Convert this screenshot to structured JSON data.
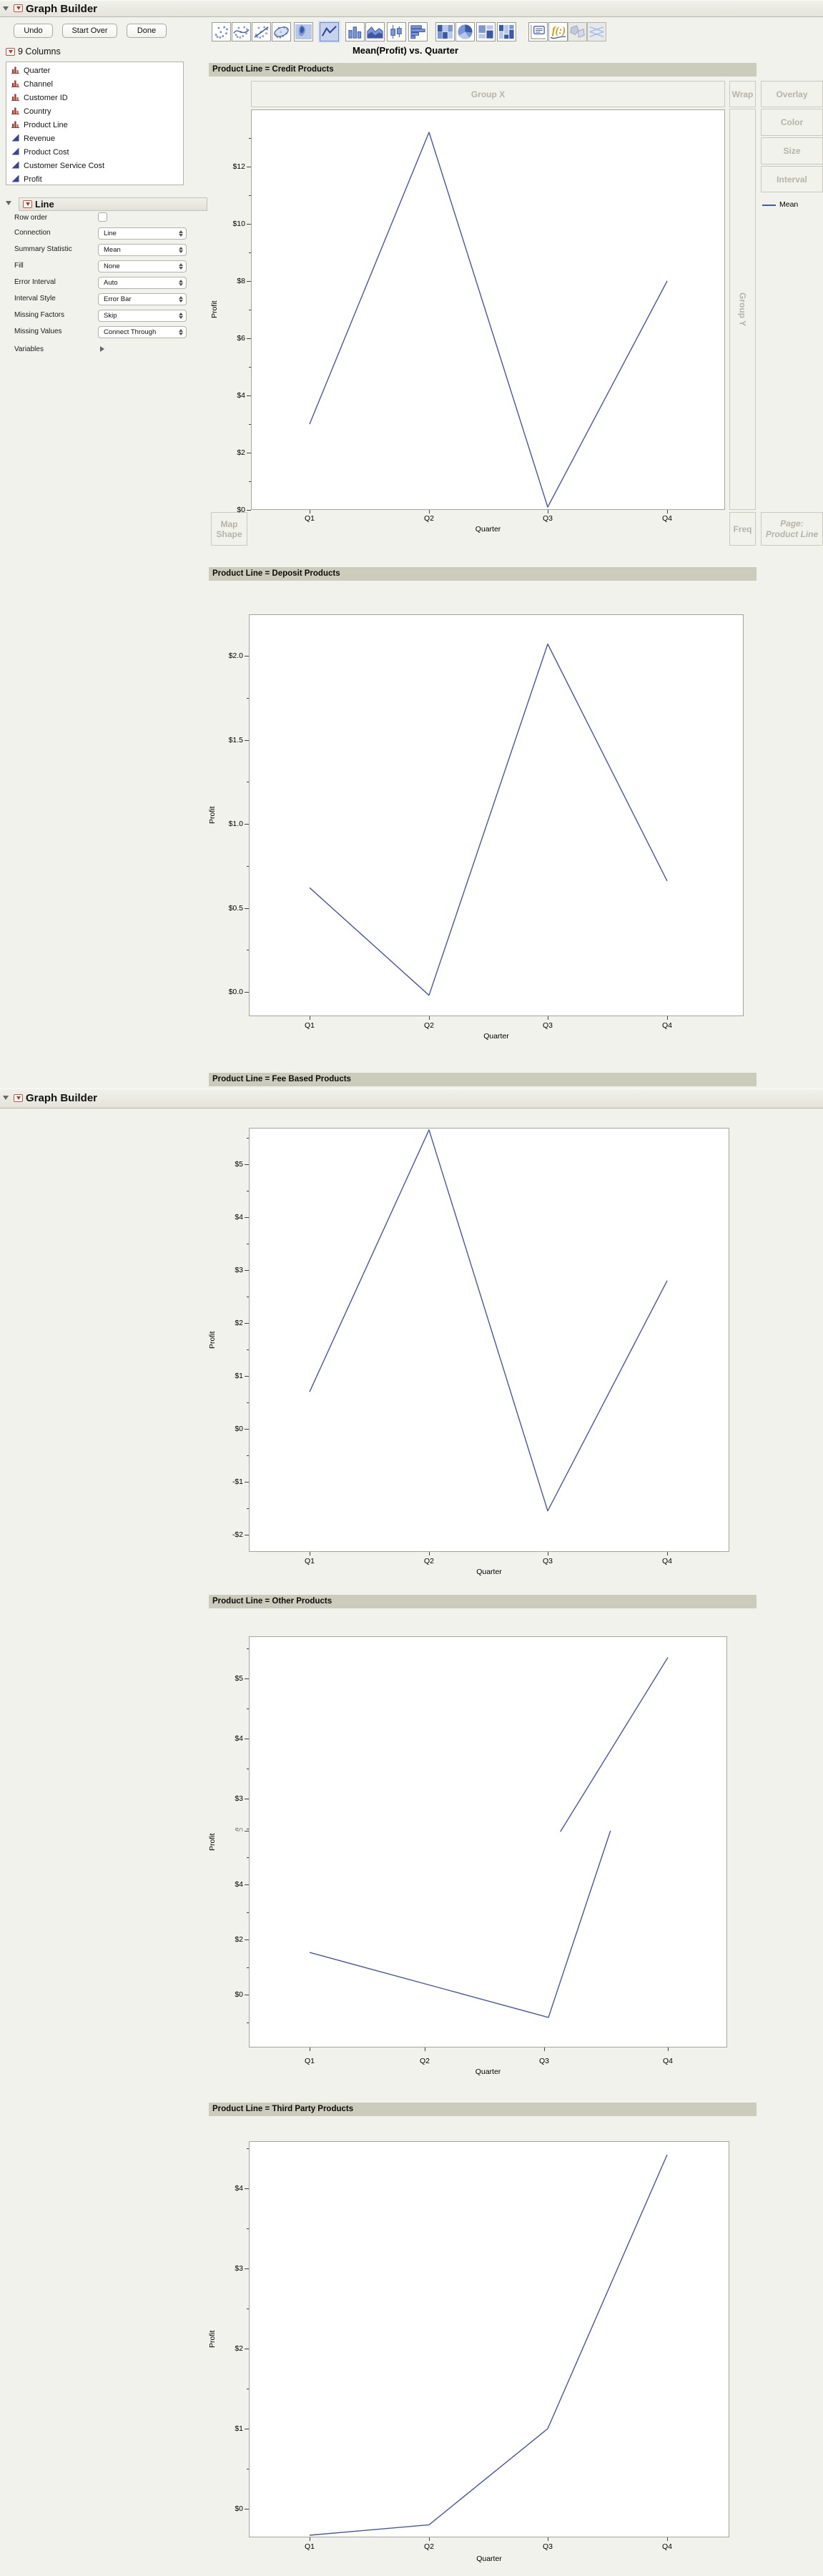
{
  "report1": {
    "title": "Graph Builder",
    "buttons": {
      "undo": "Undo",
      "start_over": "Start Over",
      "done": "Done"
    },
    "graph_title": "Mean(Profit) vs. Quarter"
  },
  "report2": {
    "title": "Graph Builder"
  },
  "toolbar": {
    "icons": [
      {
        "name": "points-icon"
      },
      {
        "name": "smoother-icon"
      },
      {
        "name": "line-of-fit-icon"
      },
      {
        "name": "ellipse-icon"
      },
      {
        "name": "contour-icon"
      },
      {
        "name": "line-icon",
        "selected": true
      },
      {
        "name": "bar-icon"
      },
      {
        "name": "area-icon"
      },
      {
        "name": "box-plot-icon"
      },
      {
        "name": "histogram-icon"
      },
      {
        "name": "heatmap-icon"
      },
      {
        "name": "pie-icon"
      },
      {
        "name": "treemap-icon"
      },
      {
        "name": "mosaic-icon"
      },
      {
        "name": "caption-box-icon"
      },
      {
        "name": "formula-icon"
      },
      {
        "name": "map-shapes-icon",
        "disabled": true
      },
      {
        "name": "parallel-plot-icon",
        "disabled": true
      }
    ]
  },
  "columns_panel": {
    "header": "9 Columns",
    "items": [
      {
        "label": "Quarter",
        "type": "nominal"
      },
      {
        "label": "Channel",
        "type": "nominal"
      },
      {
        "label": "Customer ID",
        "type": "nominal"
      },
      {
        "label": "Country",
        "type": "nominal"
      },
      {
        "label": "Product Line",
        "type": "nominal"
      },
      {
        "label": "Revenue",
        "type": "continuous"
      },
      {
        "label": "Product Cost",
        "type": "continuous"
      },
      {
        "label": "Customer Service Cost",
        "type": "continuous"
      },
      {
        "label": "Profit",
        "type": "continuous"
      }
    ]
  },
  "line_panel": {
    "header": "Line",
    "rows": [
      {
        "label": "Row order",
        "control": "checkbox",
        "value": false
      },
      {
        "label": "Connection",
        "control": "select",
        "value": "Line"
      },
      {
        "label": "Summary Statistic",
        "control": "select",
        "value": "Mean"
      },
      {
        "label": "Fill",
        "control": "select",
        "value": "None"
      },
      {
        "label": "Error Interval",
        "control": "select",
        "value": "Auto"
      },
      {
        "label": "Interval Style",
        "control": "select",
        "value": "Error Bar"
      },
      {
        "label": "Missing Factors",
        "control": "select",
        "value": "Skip"
      },
      {
        "label": "Missing Values",
        "control": "select",
        "value": "Connect Through"
      },
      {
        "label": "Variables",
        "control": "disclosure"
      }
    ]
  },
  "drop_zones": {
    "group_x": "Group X",
    "group_y": "Group Y",
    "wrap": "Wrap",
    "overlay": "Overlay",
    "color": "Color",
    "size": "Size",
    "interval": "Interval",
    "map_shape": "Map Shape",
    "freq": "Freq",
    "page_line1": "Page:",
    "page_line2": "Product Line"
  },
  "legend": {
    "label": "Mean"
  },
  "colors": {
    "line": "#4558a7",
    "band": "#cbccbb",
    "nominal_icon": "#a03a30",
    "continuous_icon": "#35459c",
    "zone_text": "#b4b4aa"
  },
  "chart_data": [
    {
      "type": "line",
      "title": "Product Line = Credit Products",
      "x": [
        "Q1",
        "Q2",
        "Q3",
        "Q4"
      ],
      "series": [
        {
          "name": "Mean",
          "values": [
            3.0,
            13.2,
            0.1,
            8.0
          ]
        }
      ],
      "xlabel": "Quarter",
      "ylabel": "Profit",
      "y_ticks": [
        {
          "v": 12,
          "label": "$12"
        },
        {
          "v": 10,
          "label": "$10"
        },
        {
          "v": 8,
          "label": "$8"
        },
        {
          "v": 6,
          "label": "$6"
        },
        {
          "v": 4,
          "label": "$4"
        },
        {
          "v": 2,
          "label": "$2"
        },
        {
          "v": 0,
          "label": "$0"
        }
      ],
      "ylim": [
        0,
        14
      ],
      "grid": false,
      "legend_position": "right"
    },
    {
      "type": "line",
      "title": "Product Line = Deposit Products",
      "x": [
        "Q1",
        "Q2",
        "Q3",
        "Q4"
      ],
      "series": [
        {
          "name": "Mean",
          "values": [
            0.62,
            -0.02,
            2.07,
            0.66
          ]
        }
      ],
      "xlabel": "Quarter",
      "ylabel": "Profit",
      "y_ticks": [
        {
          "v": 2.0,
          "label": "$2.0"
        },
        {
          "v": 1.5,
          "label": "$1.5"
        },
        {
          "v": 1.0,
          "label": "$1.0"
        },
        {
          "v": 0.5,
          "label": "$0.5"
        },
        {
          "v": 0.0,
          "label": "$0.0"
        }
      ],
      "ylim": [
        -0.15,
        2.25
      ],
      "grid": false
    },
    {
      "type": "line",
      "title": "Product Line = Fee Based Products",
      "x": [
        "Q1",
        "Q2",
        "Q3",
        "Q4"
      ],
      "series": [
        {
          "name": "Mean",
          "values": [
            0.7,
            5.65,
            -1.55,
            2.8
          ]
        }
      ],
      "xlabel": "Quarter",
      "ylabel": "Profit",
      "y_ticks": [
        {
          "v": 5,
          "label": "$5"
        },
        {
          "v": 4,
          "label": "$4"
        },
        {
          "v": 3,
          "label": "$3"
        },
        {
          "v": 2,
          "label": "$2"
        },
        {
          "v": 1,
          "label": "$1"
        },
        {
          "v": 0,
          "label": "$0"
        },
        {
          "v": -1,
          "label": "-$1"
        },
        {
          "v": -2,
          "label": "-$2"
        }
      ],
      "ylim": [
        -2.32,
        5.7
      ],
      "grid": false
    },
    {
      "type": "line",
      "title": "Product Line = Other Products",
      "x": [
        "Q1",
        "Q2",
        "Q3",
        "Q4"
      ],
      "note": "window-overlap artifact: two axis label sets and a broken line",
      "upper_ticks": [
        {
          "v": 5,
          "label": "$5"
        },
        {
          "v": 4,
          "label": "$4"
        },
        {
          "v": 3,
          "label": "$3"
        }
      ],
      "lower_ticks": [
        {
          "v": 4,
          "label": "$4"
        },
        {
          "v": 2,
          "label": "$2"
        },
        {
          "v": 0,
          "label": "$0"
        }
      ],
      "seam_label": "$0",
      "segments": [
        {
          "scale": "lower",
          "points": [
            [
              0,
              1.53
            ],
            [
              1,
              0.35
            ],
            [
              2,
              -0.83
            ],
            [
              2.52,
              5.95
            ]
          ]
        },
        {
          "scale": "upper",
          "points": [
            [
              2.1,
              2.45
            ],
            [
              3,
              5.35
            ]
          ]
        }
      ],
      "xlabel": "Quarter",
      "ylabel": "Profit",
      "grid": false
    },
    {
      "type": "line",
      "title": "Product Line = Third Party Products",
      "x": [
        "Q1",
        "Q2",
        "Q3",
        "Q4"
      ],
      "series": [
        {
          "name": "Mean",
          "values": [
            -0.33,
            -0.2,
            1.0,
            4.42
          ]
        }
      ],
      "xlabel": "Quarter",
      "ylabel": "Profit",
      "y_ticks": [
        {
          "v": 4,
          "label": "$4"
        },
        {
          "v": 3,
          "label": "$3"
        },
        {
          "v": 2,
          "label": "$2"
        },
        {
          "v": 1,
          "label": "$1"
        },
        {
          "v": 0,
          "label": "$0"
        }
      ],
      "ylim": [
        -0.36,
        4.59
      ],
      "grid": false
    }
  ]
}
